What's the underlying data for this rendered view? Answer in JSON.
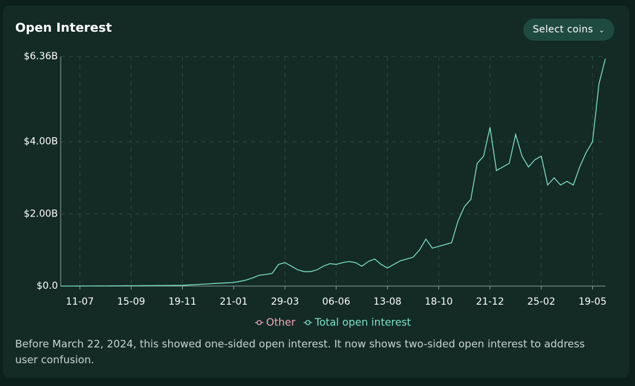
{
  "title": "Open Interest",
  "button": "Select coins",
  "chart_data": {
    "type": "line",
    "categories": [
      null,
      null,
      null,
      "11-07",
      null,
      null,
      null,
      null,
      null,
      null,
      null,
      "15-09",
      null,
      null,
      null,
      null,
      null,
      null,
      null,
      "19-11",
      null,
      null,
      null,
      null,
      null,
      null,
      null,
      "21-01",
      null,
      null,
      null,
      null,
      null,
      null,
      null,
      "29-03",
      null,
      null,
      null,
      null,
      null,
      null,
      null,
      "06-06",
      null,
      null,
      null,
      null,
      null,
      null,
      null,
      "13-08",
      null,
      null,
      null,
      null,
      null,
      null,
      null,
      "18-10",
      null,
      null,
      null,
      null,
      null,
      null,
      null,
      "21-12",
      null,
      null,
      null,
      null,
      null,
      null,
      null,
      "25-02",
      null,
      null,
      null,
      null,
      null,
      null,
      null,
      "19-05",
      null,
      null
    ],
    "series": [
      {
        "name": "Other",
        "color": "#f2a7b8",
        "values": [
          null,
          null,
          null,
          null,
          null,
          null,
          null,
          null,
          null,
          null,
          null,
          null,
          null,
          null,
          null,
          null,
          null,
          null,
          null,
          null,
          null,
          null,
          null,
          null,
          null,
          null,
          null,
          null,
          null,
          null,
          null,
          null,
          null,
          null,
          null,
          null,
          null,
          null,
          null,
          null,
          null,
          null,
          null,
          null,
          null,
          null,
          null,
          null,
          null,
          null,
          null,
          null,
          null,
          null,
          null,
          null,
          null,
          null,
          null,
          null,
          null,
          null,
          null,
          null,
          null,
          null,
          null,
          null,
          null,
          null,
          null,
          null,
          null,
          null,
          null,
          null,
          null,
          null,
          null,
          null,
          null,
          null,
          null,
          null,
          null,
          null
        ]
      },
      {
        "name": "Total open interest",
        "color": "#7fe3c6",
        "values": [
          0,
          0,
          0,
          1000000,
          2000000,
          3000000,
          4000000,
          5000000,
          6000000,
          7000000,
          8000000,
          9000000,
          10000000,
          11000000,
          12000000,
          13000000,
          14000000,
          15000000,
          18000000,
          20000000,
          30000000,
          40000000,
          50000000,
          60000000,
          70000000,
          80000000,
          90000000,
          100000000,
          130000000,
          170000000,
          230000000,
          300000000,
          320000000,
          350000000,
          600000000,
          650000000,
          550000000,
          450000000,
          400000000,
          400000000,
          450000000,
          550000000,
          620000000,
          600000000,
          650000000,
          680000000,
          650000000,
          550000000,
          680000000,
          750000000,
          600000000,
          500000000,
          600000000,
          700000000,
          750000000,
          800000000,
          1000000000,
          1300000000,
          1050000000,
          1100000000,
          1150000000,
          1200000000,
          1800000000,
          2200000000,
          2400000000,
          3400000000,
          3600000000,
          4400000000,
          3200000000,
          3300000000,
          3400000000,
          4200000000,
          3600000000,
          3300000000,
          3500000000,
          3600000000,
          2800000000,
          3000000000,
          2800000000,
          2900000000,
          2800000000,
          3300000000,
          3700000000,
          4000000000,
          5600000000,
          6300000000
        ]
      }
    ],
    "ylim": [
      0,
      6360000000
    ],
    "yticks": [
      {
        "value": 0,
        "label": "$0.0"
      },
      {
        "value": 2000000000,
        "label": "$2.00B"
      },
      {
        "value": 4000000000,
        "label": "$4.00B"
      },
      {
        "value": 6360000000,
        "label": "$6.36B"
      }
    ],
    "grid": true
  },
  "note": "Before March 22, 2024, this showed one-sided open interest. It now shows two-sided open interest to address user confusion."
}
